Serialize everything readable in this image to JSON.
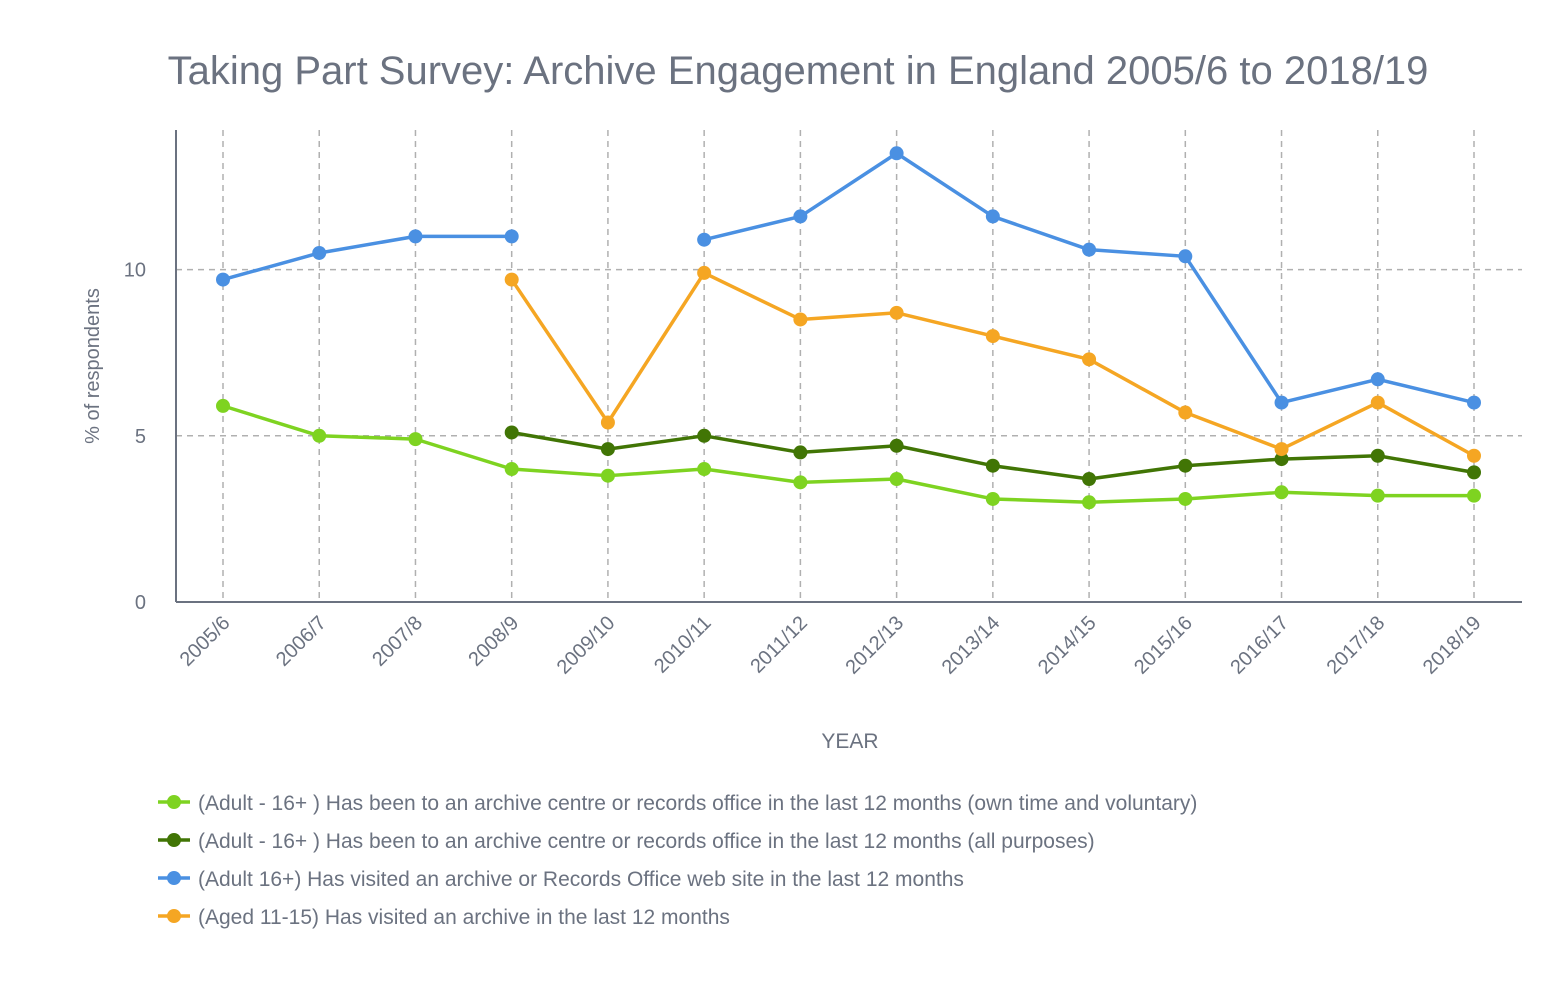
{
  "chart_data": {
    "type": "line",
    "title": "Taking Part Survey: Archive Engagement in England 2005/6 to 2018/19",
    "xlabel": "YEAR",
    "ylabel": "% of respondents",
    "ylim": [
      0,
      14.2
    ],
    "yticks": [
      0,
      5,
      10
    ],
    "grid": true,
    "legend_placement": "bottom",
    "categories": [
      "2005/6",
      "2006/7",
      "2007/8",
      "2008/9",
      "2009/10",
      "2010/11",
      "2011/12",
      "2012/13",
      "2013/14",
      "2014/15",
      "2015/16",
      "2016/17",
      "2017/18",
      "2018/19"
    ],
    "series": [
      {
        "name": "(Adult - 16+ ) Has been to an archive centre or records office in the last 12 months (own time and voluntary)",
        "color": "#7ed321",
        "values": [
          5.9,
          5.0,
          4.9,
          4.0,
          3.8,
          4.0,
          3.6,
          3.7,
          3.1,
          3.0,
          3.1,
          3.3,
          3.2,
          3.2
        ]
      },
      {
        "name": "(Adult - 16+ ) Has been to an archive centre or records office in the last 12 months (all purposes)",
        "color": "#417505",
        "values": [
          null,
          null,
          null,
          5.1,
          4.6,
          5.0,
          4.5,
          4.7,
          4.1,
          3.7,
          4.1,
          4.3,
          4.4,
          3.9
        ]
      },
      {
        "name": "(Adult 16+) Has visited an archive or Records Office web site in the last 12 months",
        "color": "#4a90e2",
        "values": [
          9.7,
          10.5,
          11.0,
          11.0,
          null,
          10.9,
          11.6,
          13.5,
          11.6,
          10.6,
          10.4,
          6.0,
          6.7,
          6.0
        ]
      },
      {
        "name": "(Aged 11-15) Has visited an archive in the last 12 months",
        "color": "#f5a623",
        "values": [
          null,
          null,
          null,
          9.7,
          5.4,
          9.9,
          8.5,
          8.7,
          8.0,
          7.3,
          5.7,
          4.6,
          6.0,
          4.4
        ]
      }
    ]
  }
}
